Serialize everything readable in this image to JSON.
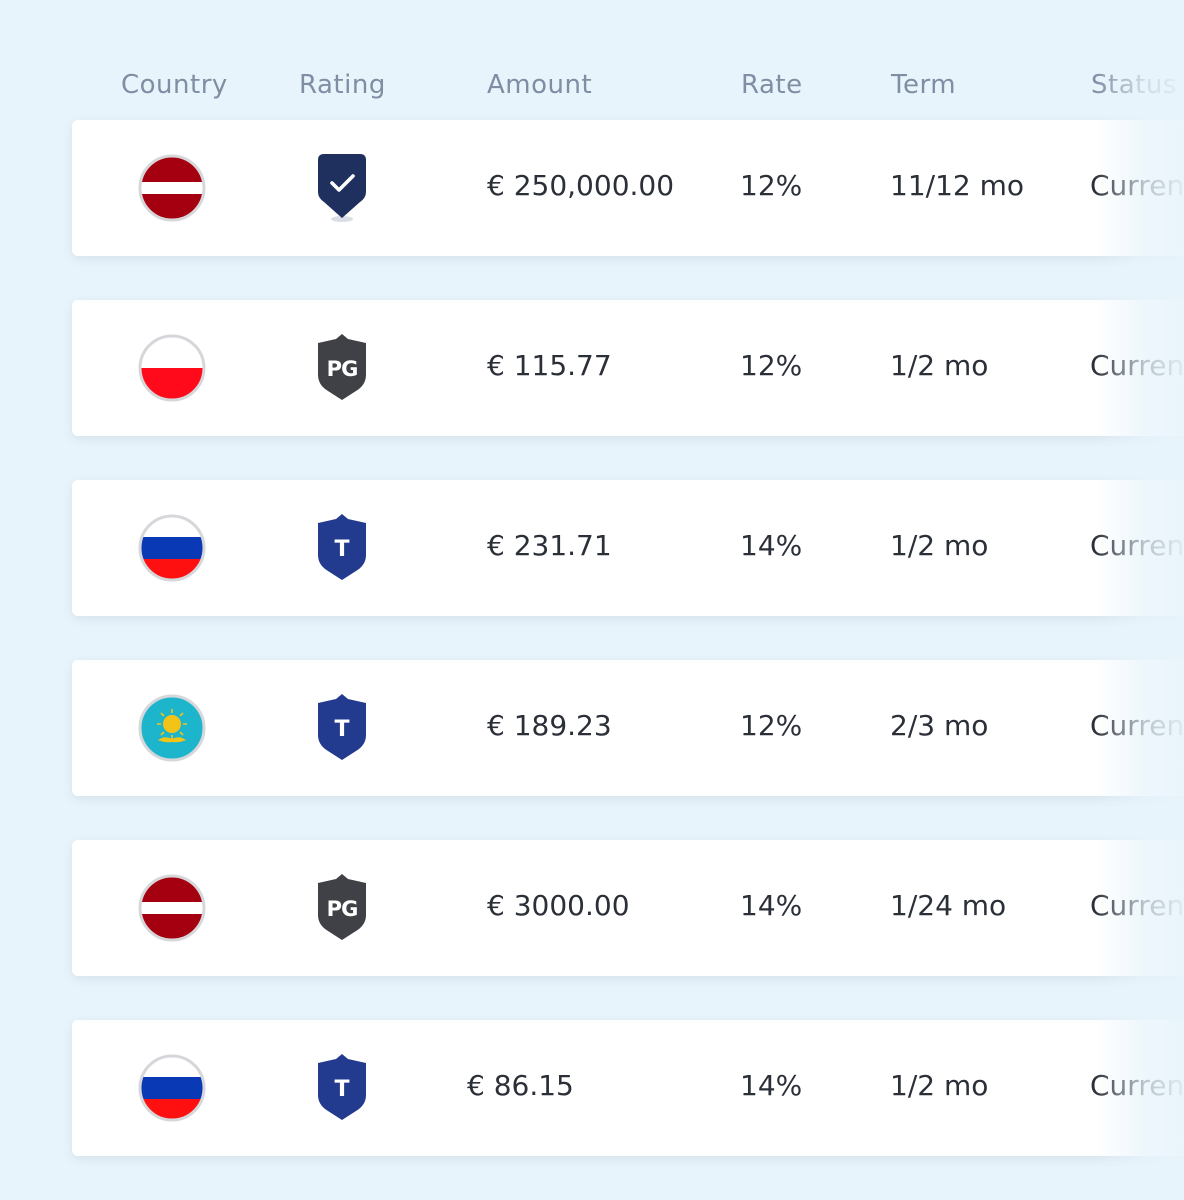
{
  "header": {
    "country": "Country",
    "rating": "Rating",
    "amount": "Amount",
    "rate": "Rate",
    "term": "Term",
    "status": "Status"
  },
  "colors": {
    "background": "#e8f4fb",
    "header_text": "#7f8ea3",
    "badge_check": "#1f2f5e",
    "badge_pg": "#3f4146",
    "badge_t": "#233b8e",
    "latvia_red": "#a4000f",
    "poland_red": "#ff0a1a",
    "russia_blue": "#0a39b5",
    "russia_red": "#ff1010",
    "kazakhstan_teal": "#1cb5cc",
    "kazakhstan_gold": "#f3c318"
  },
  "rows": [
    {
      "country_icon": "latvia-flag-icon",
      "rating_icon": "check-shield-icon",
      "amount": "€ 250,000.00",
      "rate": "12%",
      "term": "11/12 mo",
      "status": "Current"
    },
    {
      "country_icon": "poland-flag-icon",
      "rating_icon": "pg-shield-icon",
      "rating_label": "PG",
      "amount": "€ 115.77",
      "rate": "12%",
      "term": "1/2 mo",
      "status": "Current"
    },
    {
      "country_icon": "russia-flag-icon",
      "rating_icon": "t-shield-icon",
      "rating_label": "T",
      "amount": "€ 231.71",
      "rate": "14%",
      "term": "1/2 mo",
      "status": "Current"
    },
    {
      "country_icon": "kazakhstan-flag-icon",
      "rating_icon": "t-shield-icon",
      "rating_label": "T",
      "amount": "€ 189.23",
      "rate": "12%",
      "term": "2/3 mo",
      "status": "Current"
    },
    {
      "country_icon": "latvia-flag-icon",
      "rating_icon": "pg-shield-icon",
      "rating_label": "PG",
      "amount": "€ 3000.00",
      "rate": "14%",
      "term": "1/24 mo",
      "status": "Current"
    },
    {
      "country_icon": "russia-flag-icon",
      "rating_icon": "t-shield-icon",
      "rating_label": "T",
      "amount": "€ 86.15",
      "rate": "14%",
      "term": "1/2 mo",
      "status": "Current"
    }
  ]
}
